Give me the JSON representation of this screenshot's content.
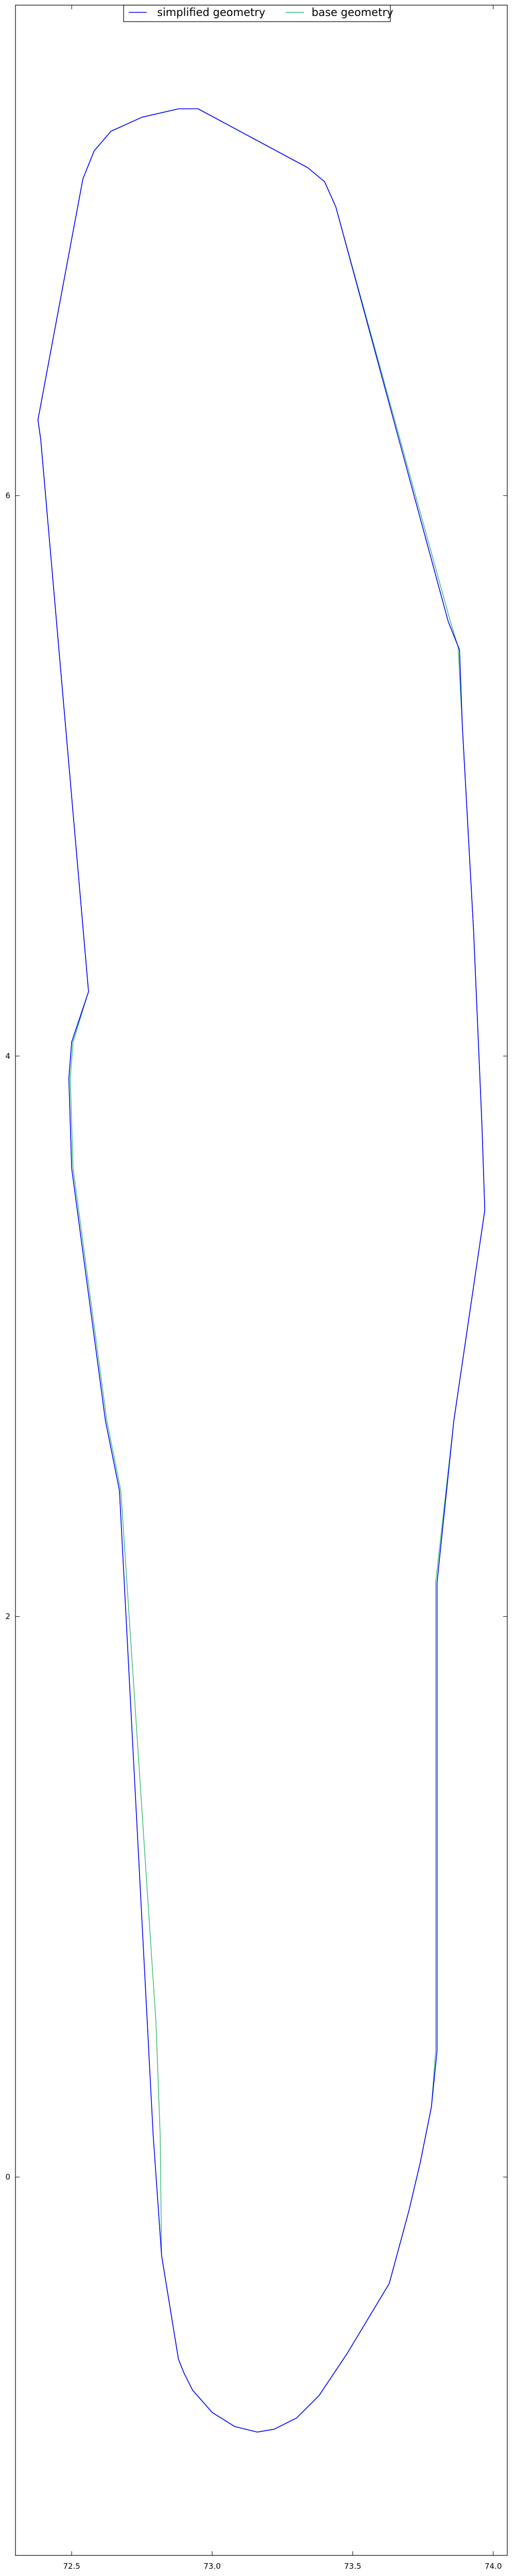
{
  "chart_data": {
    "type": "line",
    "title": "",
    "xlabel": "",
    "ylabel": "",
    "xlim": [
      72.3,
      74.05
    ],
    "ylim": [
      -1.35,
      7.75
    ],
    "xticks": [
      72.5,
      73.0,
      73.5,
      74.0
    ],
    "xtick_labels": [
      "72.5",
      "73.0",
      "73.5",
      "74.0"
    ],
    "yticks": [
      0,
      2,
      4,
      6
    ],
    "ytick_labels": [
      "0",
      "2",
      "4",
      "6"
    ],
    "grid": false,
    "legend": {
      "placement": "upper center",
      "entries": [
        "simplified geometry",
        "base geometry"
      ]
    },
    "series": [
      {
        "name": "simplified geometry",
        "color": "#0000ff",
        "points": [
          [
            72.82,
            -0.28
          ],
          [
            72.88,
            -0.65
          ],
          [
            72.9,
            -0.7
          ],
          [
            72.93,
            -0.76
          ],
          [
            73.0,
            -0.84
          ],
          [
            73.08,
            -0.89
          ],
          [
            73.16,
            -0.91
          ],
          [
            73.22,
            -0.9
          ],
          [
            73.3,
            -0.86
          ],
          [
            73.38,
            -0.78
          ],
          [
            73.48,
            -0.63
          ],
          [
            73.63,
            -0.38
          ],
          [
            73.7,
            -0.12
          ],
          [
            73.74,
            0.05
          ],
          [
            73.78,
            0.25
          ],
          [
            73.8,
            0.45
          ],
          [
            73.8,
            2.12
          ],
          [
            73.86,
            2.7
          ],
          [
            73.97,
            3.45
          ],
          [
            73.96,
            3.75
          ],
          [
            73.93,
            4.45
          ],
          [
            73.89,
            5.18
          ],
          [
            73.88,
            5.45
          ],
          [
            73.84,
            5.55
          ],
          [
            73.44,
            7.03
          ],
          [
            73.4,
            7.12
          ],
          [
            73.34,
            7.17
          ],
          [
            72.95,
            7.38
          ],
          [
            72.88,
            7.38
          ],
          [
            72.75,
            7.35
          ],
          [
            72.64,
            7.3
          ],
          [
            72.58,
            7.23
          ],
          [
            72.54,
            7.13
          ],
          [
            72.38,
            6.27
          ],
          [
            72.39,
            6.2
          ],
          [
            72.56,
            4.23
          ],
          [
            72.5,
            4.05
          ],
          [
            72.49,
            3.92
          ],
          [
            72.5,
            3.6
          ],
          [
            72.62,
            2.7
          ],
          [
            72.67,
            2.45
          ],
          [
            72.79,
            0.15
          ],
          [
            72.82,
            -0.28
          ]
        ]
      },
      {
        "name": "base geometry",
        "color": "#30b870",
        "points": [
          [
            72.82,
            -0.28
          ],
          [
            72.88,
            -0.65
          ],
          [
            72.9,
            -0.7
          ],
          [
            72.93,
            -0.76
          ],
          [
            73.0,
            -0.84
          ],
          [
            73.08,
            -0.89
          ],
          [
            73.16,
            -0.91
          ],
          [
            73.22,
            -0.9
          ],
          [
            73.3,
            -0.86
          ],
          [
            73.38,
            -0.78
          ],
          [
            73.48,
            -0.63
          ],
          [
            73.63,
            -0.38
          ],
          [
            73.7,
            -0.12
          ],
          [
            73.74,
            0.05
          ],
          [
            73.78,
            0.25
          ],
          [
            73.795,
            0.45
          ],
          [
            73.795,
            2.12
          ],
          [
            73.86,
            2.7
          ],
          [
            73.97,
            3.45
          ],
          [
            73.96,
            3.75
          ],
          [
            73.93,
            4.45
          ],
          [
            73.89,
            5.18
          ],
          [
            73.875,
            5.46
          ],
          [
            73.845,
            5.56
          ],
          [
            73.44,
            7.03
          ],
          [
            73.4,
            7.12
          ],
          [
            73.34,
            7.17
          ],
          [
            72.95,
            7.38
          ],
          [
            72.88,
            7.38
          ],
          [
            72.75,
            7.35
          ],
          [
            72.64,
            7.3
          ],
          [
            72.58,
            7.23
          ],
          [
            72.54,
            7.13
          ],
          [
            72.38,
            6.27
          ],
          [
            72.39,
            6.2
          ],
          [
            72.56,
            4.23
          ],
          [
            72.505,
            4.05
          ],
          [
            72.495,
            3.92
          ],
          [
            72.505,
            3.6
          ],
          [
            72.625,
            2.7
          ],
          [
            72.675,
            2.45
          ],
          [
            72.8,
            0.55
          ],
          [
            72.815,
            0.15
          ],
          [
            72.82,
            -0.28
          ]
        ]
      }
    ]
  }
}
